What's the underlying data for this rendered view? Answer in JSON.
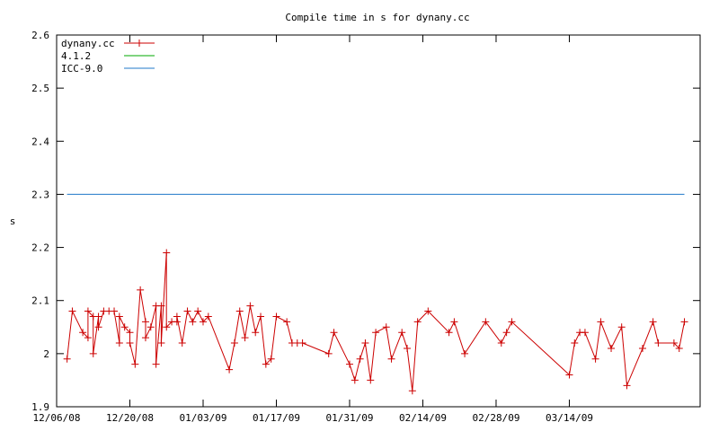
{
  "chart_data": {
    "type": "line",
    "title": "Compile time in s for dynany.cc",
    "xlabel": "",
    "ylabel": "s",
    "ylim": [
      1.9,
      2.6
    ],
    "yticks": [
      "1.9",
      "2",
      "2.1",
      "2.2",
      "2.3",
      "2.4",
      "2.5",
      "2.6"
    ],
    "xlim": [
      "2008-12-06",
      "2009-04-08"
    ],
    "xticks": [
      "12/06/08",
      "12/20/08",
      "01/03/09",
      "01/17/09",
      "01/31/09",
      "02/14/09",
      "02/28/09",
      "03/14/09"
    ],
    "grid": false,
    "legend_position": "top-left",
    "colors": {
      "dynany.cc": "#cc0000",
      "4.1.2": "#00aa00",
      "ICC-9.0": "#1f78c8"
    },
    "series": [
      {
        "name": "dynany.cc",
        "marker": "plus",
        "points": [
          [
            "2008-12-08",
            1.99
          ],
          [
            "2008-12-09",
            2.08
          ],
          [
            "2008-12-11",
            2.04
          ],
          [
            "2008-12-12",
            2.03
          ],
          [
            "2008-12-12",
            2.08
          ],
          [
            "2008-12-13",
            2.07
          ],
          [
            "2008-12-13",
            2.0
          ],
          [
            "2008-12-14",
            2.07
          ],
          [
            "2008-12-14",
            2.05
          ],
          [
            "2008-12-15",
            2.08
          ],
          [
            "2008-12-16",
            2.08
          ],
          [
            "2008-12-17",
            2.08
          ],
          [
            "2008-12-18",
            2.02
          ],
          [
            "2008-12-18",
            2.07
          ],
          [
            "2008-12-19",
            2.05
          ],
          [
            "2008-12-20",
            2.04
          ],
          [
            "2008-12-20",
            2.02
          ],
          [
            "2008-12-21",
            1.98
          ],
          [
            "2008-12-22",
            2.12
          ],
          [
            "2008-12-23",
            2.06
          ],
          [
            "2008-12-23",
            2.03
          ],
          [
            "2008-12-24",
            2.05
          ],
          [
            "2008-12-25",
            2.09
          ],
          [
            "2008-12-25",
            1.98
          ],
          [
            "2008-12-26",
            2.09
          ],
          [
            "2008-12-26",
            2.02
          ],
          [
            "2008-12-27",
            2.19
          ],
          [
            "2008-12-27",
            2.05
          ],
          [
            "2008-12-28",
            2.06
          ],
          [
            "2008-12-29",
            2.06
          ],
          [
            "2008-12-29",
            2.07
          ],
          [
            "2008-12-30",
            2.02
          ],
          [
            "2008-12-31",
            2.08
          ],
          [
            "2009-01-01",
            2.06
          ],
          [
            "2009-01-02",
            2.08
          ],
          [
            "2009-01-03",
            2.06
          ],
          [
            "2009-01-04",
            2.07
          ],
          [
            "2009-01-08",
            1.97
          ],
          [
            "2009-01-09",
            2.02
          ],
          [
            "2009-01-10",
            2.08
          ],
          [
            "2009-01-11",
            2.03
          ],
          [
            "2009-01-12",
            2.09
          ],
          [
            "2009-01-13",
            2.04
          ],
          [
            "2009-01-14",
            2.07
          ],
          [
            "2009-01-15",
            1.98
          ],
          [
            "2009-01-16",
            1.99
          ],
          [
            "2009-01-17",
            2.07
          ],
          [
            "2009-01-19",
            2.06
          ],
          [
            "2009-01-20",
            2.02
          ],
          [
            "2009-01-21",
            2.02
          ],
          [
            "2009-01-22",
            2.02
          ],
          [
            "2009-01-27",
            2.0
          ],
          [
            "2009-01-28",
            2.04
          ],
          [
            "2009-01-31",
            1.98
          ],
          [
            "2009-02-01",
            1.95
          ],
          [
            "2009-02-02",
            1.99
          ],
          [
            "2009-02-03",
            2.02
          ],
          [
            "2009-02-04",
            1.95
          ],
          [
            "2009-02-05",
            2.04
          ],
          [
            "2009-02-07",
            2.05
          ],
          [
            "2009-02-08",
            1.99
          ],
          [
            "2009-02-10",
            2.04
          ],
          [
            "2009-02-11",
            2.01
          ],
          [
            "2009-02-12",
            1.93
          ],
          [
            "2009-02-13",
            2.06
          ],
          [
            "2009-02-15",
            2.08
          ],
          [
            "2009-02-19",
            2.04
          ],
          [
            "2009-02-20",
            2.06
          ],
          [
            "2009-02-22",
            2.0
          ],
          [
            "2009-02-26",
            2.06
          ],
          [
            "2009-03-01",
            2.02
          ],
          [
            "2009-03-02",
            2.04
          ],
          [
            "2009-03-03",
            2.06
          ],
          [
            "2009-03-14",
            1.96
          ],
          [
            "2009-03-15",
            2.02
          ],
          [
            "2009-03-16",
            2.04
          ],
          [
            "2009-03-17",
            2.04
          ],
          [
            "2009-03-19",
            1.99
          ],
          [
            "2009-03-20",
            2.06
          ],
          [
            "2009-03-22",
            2.01
          ],
          [
            "2009-03-24",
            2.05
          ],
          [
            "2009-03-25",
            1.94
          ],
          [
            "2009-03-28",
            2.01
          ],
          [
            "2009-03-30",
            2.06
          ],
          [
            "2009-03-31",
            2.02
          ],
          [
            "2009-04-03",
            2.02
          ],
          [
            "2009-04-04",
            2.01
          ],
          [
            "2009-04-05",
            2.06
          ]
        ]
      },
      {
        "name": "4.1.2",
        "points": []
      },
      {
        "name": "ICC-9.0",
        "points": [
          [
            "2008-12-08",
            2.3
          ],
          [
            "2009-04-05",
            2.3
          ]
        ]
      }
    ]
  }
}
